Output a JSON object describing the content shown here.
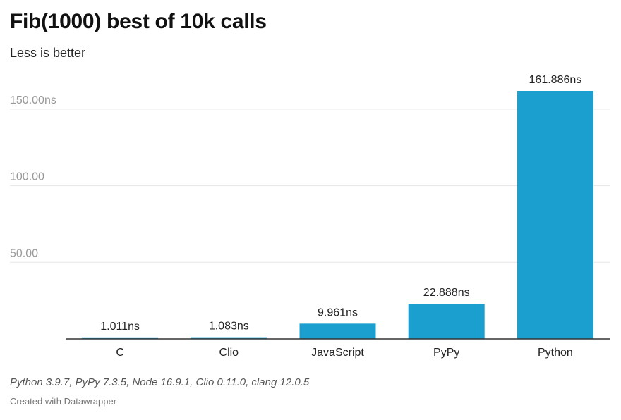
{
  "title": "Fib(1000) best of 10k calls",
  "subtitle": "Less is better",
  "notes": "Python 3.9.7, PyPy 7.3.5, Node 16.9.1, Clio 0.11.0, clang 12.0.5",
  "credit": "Created with Datawrapper",
  "colors": {
    "bar": "#1a9fce",
    "grid": "#e5e5e5",
    "axis": "#333333",
    "tick_label": "#999999"
  },
  "chart_data": {
    "type": "bar",
    "title": "Fib(1000) best of 10k calls",
    "subtitle": "Less is better",
    "categories": [
      "C",
      "Clio",
      "JavaScript",
      "PyPy",
      "Python"
    ],
    "values": [
      1.011,
      1.083,
      9.961,
      22.888,
      161.886
    ],
    "value_labels": [
      "1.011ns",
      "1.083ns",
      "9.961ns",
      "22.888ns",
      "161.886ns"
    ],
    "yticks": [
      50,
      100,
      150
    ],
    "ytick_labels": [
      "50.00",
      "100.00",
      "150.00ns"
    ],
    "ylim": [
      0,
      161.886
    ],
    "grid": true,
    "xlabel": "",
    "ylabel": ""
  }
}
